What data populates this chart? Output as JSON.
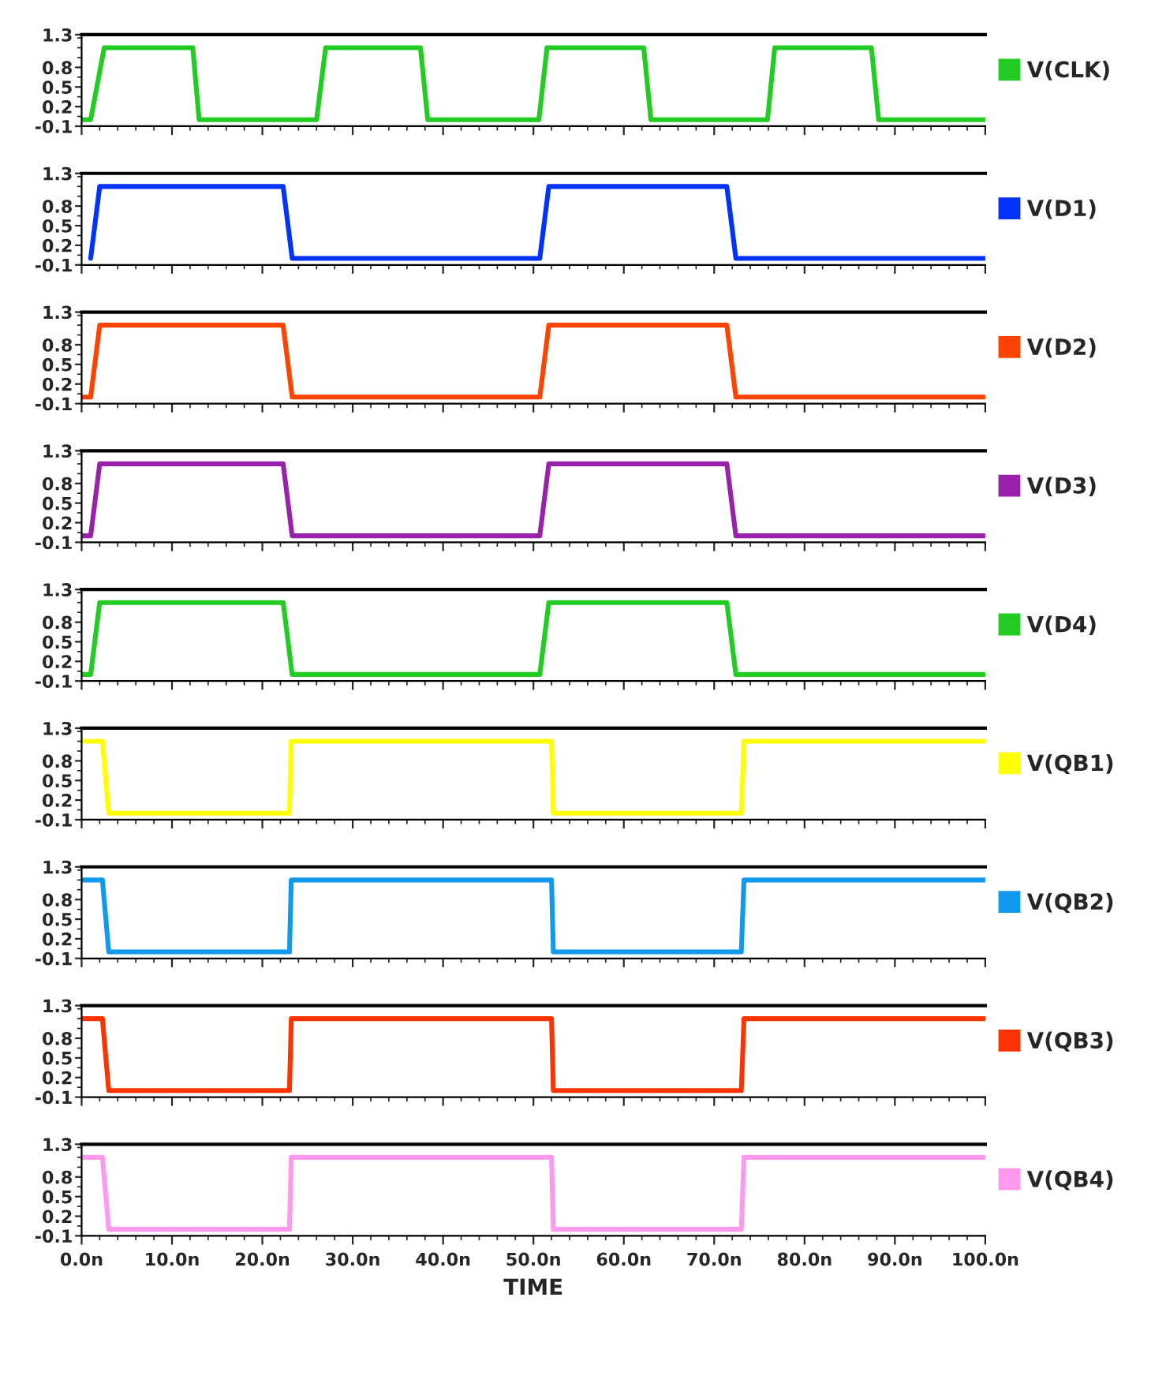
{
  "chart_data": [
    {
      "type": "line",
      "x": [
        0,
        1,
        2.5,
        12.3,
        13,
        26,
        27,
        37.5,
        38.3,
        50.6,
        51.5,
        62.2,
        63,
        75.9,
        76.7,
        87.4,
        88.2,
        100
      ],
      "series": [
        {
          "name": "V(CLK)",
          "color": "#22cc22",
          "values": [
            0,
            0,
            1.1,
            1.1,
            0,
            0,
            1.1,
            1.1,
            0,
            0,
            1.1,
            1.1,
            0,
            0,
            1.1,
            1.1,
            0,
            0
          ]
        }
      ],
      "xlim": [
        0,
        100
      ],
      "ylim": [
        -0.1,
        1.3
      ],
      "yticks": [
        -0.1,
        0.2,
        0.5,
        0.8,
        1.3
      ],
      "tick_labels": "y",
      "legend": "right",
      "grid": false
    },
    {
      "type": "line",
      "x": [
        1,
        2,
        22.3,
        23.3,
        50.7,
        51.7,
        71.4,
        72.4,
        100
      ],
      "series": [
        {
          "name": "V(D1)",
          "color": "#0033ff",
          "values": [
            0,
            1.1,
            1.1,
            0,
            0,
            1.1,
            1.1,
            0,
            0
          ]
        }
      ],
      "xlim": [
        0,
        100
      ],
      "ylim": [
        -0.1,
        1.3
      ],
      "yticks": [
        -0.1,
        0.2,
        0.5,
        0.8,
        1.3
      ],
      "tick_labels": "y",
      "legend": "right",
      "grid": false
    },
    {
      "type": "line",
      "x": [
        0,
        1,
        2,
        22.3,
        23.3,
        50.7,
        51.7,
        71.4,
        72.4,
        100
      ],
      "series": [
        {
          "name": "V(D2)",
          "color": "#ff4400",
          "values": [
            0,
            0,
            1.1,
            1.1,
            0,
            0,
            1.1,
            1.1,
            0,
            0
          ]
        }
      ],
      "xlim": [
        0,
        100
      ],
      "ylim": [
        -0.1,
        1.3
      ],
      "yticks": [
        -0.1,
        0.2,
        0.5,
        0.8,
        1.3
      ],
      "tick_labels": "y",
      "legend": "right",
      "grid": false
    },
    {
      "type": "line",
      "x": [
        0,
        1,
        2,
        22.3,
        23.3,
        50.7,
        51.7,
        71.4,
        72.4,
        100
      ],
      "series": [
        {
          "name": "V(D3)",
          "color": "#9922aa",
          "values": [
            0,
            0,
            1.1,
            1.1,
            0,
            0,
            1.1,
            1.1,
            0,
            0
          ]
        }
      ],
      "xlim": [
        0,
        100
      ],
      "ylim": [
        -0.1,
        1.3
      ],
      "yticks": [
        -0.1,
        0.2,
        0.5,
        0.8,
        1.3
      ],
      "tick_labels": "y",
      "legend": "right",
      "grid": false
    },
    {
      "type": "line",
      "x": [
        0,
        1,
        2,
        22.3,
        23.3,
        50.7,
        51.7,
        71.4,
        72.4,
        100
      ],
      "series": [
        {
          "name": "V(D4)",
          "color": "#22cc22",
          "values": [
            0,
            0,
            1.1,
            1.1,
            0,
            0,
            1.1,
            1.1,
            0,
            0
          ]
        }
      ],
      "xlim": [
        0,
        100
      ],
      "ylim": [
        -0.1,
        1.3
      ],
      "yticks": [
        -0.1,
        0.2,
        0.5,
        0.8,
        1.3
      ],
      "tick_labels": "y",
      "legend": "right",
      "grid": false
    },
    {
      "type": "line",
      "x": [
        0,
        2.3,
        3,
        23,
        23.2,
        52,
        52.2,
        73,
        73.3,
        100
      ],
      "series": [
        {
          "name": "V(QB1)",
          "color": "#ffff00",
          "values": [
            1.1,
            1.1,
            0,
            0,
            1.1,
            1.1,
            0,
            0,
            1.1,
            1.1
          ]
        }
      ],
      "xlim": [
        0,
        100
      ],
      "ylim": [
        -0.1,
        1.3
      ],
      "yticks": [
        -0.1,
        0.2,
        0.5,
        0.8,
        1.3
      ],
      "tick_labels": "y",
      "legend": "right",
      "grid": false
    },
    {
      "type": "line",
      "x": [
        0,
        2.3,
        3,
        23,
        23.2,
        52,
        52.2,
        73,
        73.3,
        100
      ],
      "series": [
        {
          "name": "V(QB2)",
          "color": "#1199ee",
          "values": [
            1.1,
            1.1,
            0,
            0,
            1.1,
            1.1,
            0,
            0,
            1.1,
            1.1
          ]
        }
      ],
      "xlim": [
        0,
        100
      ],
      "ylim": [
        -0.1,
        1.3
      ],
      "yticks": [
        -0.1,
        0.2,
        0.5,
        0.8,
        1.3
      ],
      "tick_labels": "y",
      "legend": "right",
      "grid": false
    },
    {
      "type": "line",
      "x": [
        0,
        2.3,
        3,
        23,
        23.2,
        52,
        52.2,
        73,
        73.3,
        100
      ],
      "series": [
        {
          "name": "V(QB3)",
          "color": "#ff3300",
          "values": [
            1.1,
            1.1,
            0,
            0,
            1.1,
            1.1,
            0,
            0,
            1.1,
            1.1
          ]
        }
      ],
      "xlim": [
        0,
        100
      ],
      "ylim": [
        -0.1,
        1.3
      ],
      "yticks": [
        -0.1,
        0.2,
        0.5,
        0.8,
        1.3
      ],
      "tick_labels": "y",
      "legend": "right",
      "grid": false
    },
    {
      "type": "line",
      "x": [
        0,
        2.3,
        3,
        23,
        23.2,
        52,
        52.2,
        73,
        73.3,
        100
      ],
      "series": [
        {
          "name": "V(QB4)",
          "color": "#ff99ee",
          "values": [
            1.1,
            1.1,
            0,
            0,
            1.1,
            1.1,
            0,
            0,
            1.1,
            1.1
          ]
        }
      ],
      "xlim": [
        0,
        100
      ],
      "ylim": [
        -0.1,
        1.3
      ],
      "yticks": [
        -0.1,
        0.2,
        0.5,
        0.8,
        1.3
      ],
      "xticks": [
        {
          "value": 0,
          "label": "0.0n"
        },
        {
          "value": 10,
          "label": "10.0n"
        },
        {
          "value": 20,
          "label": "20.0n"
        },
        {
          "value": 30,
          "label": "30.0n"
        },
        {
          "value": 40,
          "label": "40.0n"
        },
        {
          "value": 50,
          "label": "50.0n"
        },
        {
          "value": 60,
          "label": "60.0n"
        },
        {
          "value": 70,
          "label": "70.0n"
        },
        {
          "value": 80,
          "label": "80.0n"
        },
        {
          "value": 90,
          "label": "90.0n"
        },
        {
          "value": 100,
          "label": "100.0n"
        }
      ],
      "xlabel": "TIME",
      "legend": "right",
      "grid": false
    }
  ]
}
